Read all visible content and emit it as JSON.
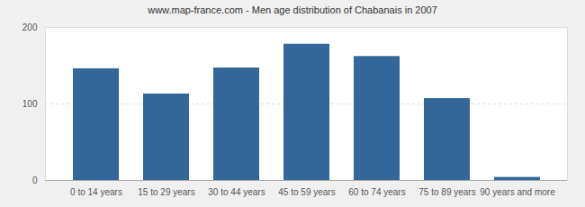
{
  "chart_data": {
    "type": "bar",
    "title": "www.map-france.com - Men age distribution of Chabanais in 2007",
    "categories": [
      "0 to 14 years",
      "15 to 29 years",
      "30 to 44 years",
      "45 to 59 years",
      "60 to 74 years",
      "75 to 89 years",
      "90 years and more"
    ],
    "values": [
      146,
      113,
      147,
      178,
      162,
      107,
      4
    ],
    "color": "#336699",
    "ylim": [
      0,
      200
    ],
    "yticks": [
      0,
      100,
      200
    ],
    "grid": true
  }
}
